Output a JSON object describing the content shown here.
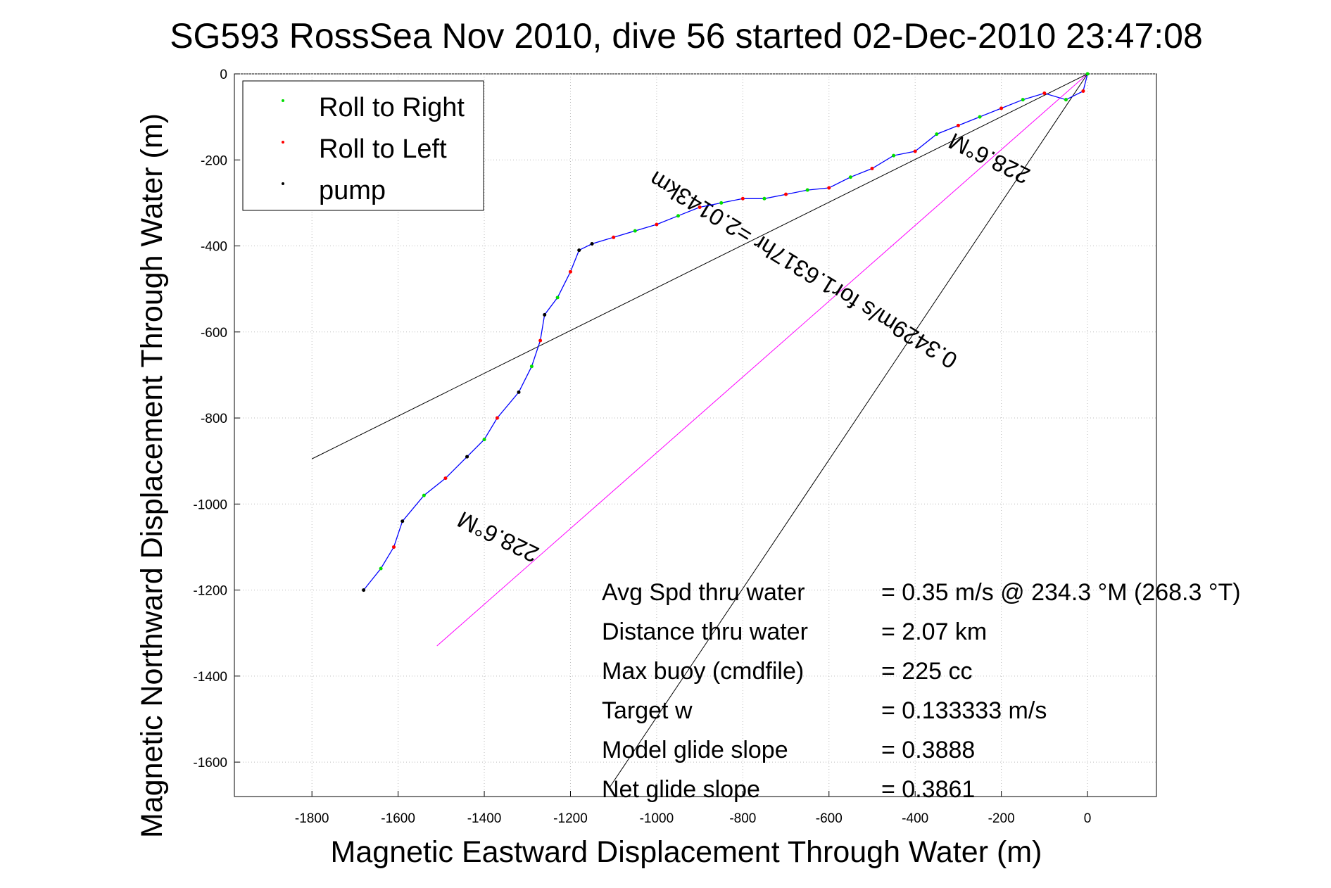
{
  "chart_data": {
    "type": "scatter",
    "title": "SG593 RossSea Nov 2010, dive 56 started 02-Dec-2010 23:47:08",
    "xlabel": "Magnetic Eastward Displacement Through Water (m)",
    "ylabel": "Magnetic Northward Displacement Through Water (m)",
    "xlim": [
      -1980,
      160
    ],
    "ylim": [
      -1680,
      0
    ],
    "xticks": [
      -1800,
      -1600,
      -1400,
      -1200,
      -1000,
      -800,
      -600,
      -400,
      -200,
      0
    ],
    "yticks": [
      0,
      -200,
      -400,
      -600,
      -800,
      -1000,
      -1200,
      -1400,
      -1600
    ],
    "grid": true,
    "legend": {
      "placement": "top-left",
      "entries": [
        {
          "label": "Roll to Right",
          "color": "#00dd00"
        },
        {
          "label": "Roll to Left",
          "color": "#ff0000"
        },
        {
          "label": "pump",
          "color": "#000000"
        }
      ]
    },
    "track_color": "#0000ff",
    "track": [
      [
        0,
        0
      ],
      [
        -10,
        -40
      ],
      [
        -50,
        -60
      ],
      [
        -100,
        -45
      ],
      [
        -150,
        -60
      ],
      [
        -200,
        -80
      ],
      [
        -250,
        -100
      ],
      [
        -300,
        -120
      ],
      [
        -350,
        -140
      ],
      [
        -400,
        -180
      ],
      [
        -450,
        -190
      ],
      [
        -500,
        -220
      ],
      [
        -550,
        -240
      ],
      [
        -600,
        -265
      ],
      [
        -650,
        -270
      ],
      [
        -700,
        -280
      ],
      [
        -750,
        -290
      ],
      [
        -800,
        -290
      ],
      [
        -850,
        -300
      ],
      [
        -900,
        -310
      ],
      [
        -950,
        -330
      ],
      [
        -1000,
        -350
      ],
      [
        -1050,
        -365
      ],
      [
        -1100,
        -380
      ],
      [
        -1150,
        -395
      ],
      [
        -1180,
        -410
      ],
      [
        -1200,
        -460
      ],
      [
        -1230,
        -520
      ],
      [
        -1260,
        -560
      ],
      [
        -1270,
        -620
      ],
      [
        -1290,
        -680
      ],
      [
        -1320,
        -740
      ],
      [
        -1370,
        -800
      ],
      [
        -1400,
        -850
      ],
      [
        -1440,
        -890
      ],
      [
        -1490,
        -940
      ],
      [
        -1540,
        -980
      ],
      [
        -1590,
        -1040
      ],
      [
        -1610,
        -1100
      ],
      [
        -1640,
        -1150
      ],
      [
        -1680,
        -1200
      ]
    ],
    "reference_lines": [
      {
        "label": "228.6°M",
        "color": "#ff00ff",
        "from": [
          0,
          0
        ],
        "to": [
          -1510,
          -1330
        ]
      },
      {
        "label": "",
        "color": "#000000",
        "from": [
          0,
          0
        ],
        "to": [
          -1800,
          -895
        ]
      },
      {
        "label": "",
        "color": "#000000",
        "from": [
          0,
          0
        ],
        "to": [
          -1110,
          -1660
        ]
      }
    ],
    "line_labels": [
      {
        "text": "228.6°M",
        "rotation": 206
      },
      {
        "text": "0.3429m/s for1.6317hr =2.0143km",
        "rotation": 211.5
      },
      {
        "text": "228.6°M",
        "rotation": 206
      }
    ],
    "annotations": [
      {
        "label": "Avg Spd thru water",
        "value": "=  0.35 m/s @ 234.3 °M (268.3 °T)"
      },
      {
        "label": "Distance thru water",
        "value": "=  2.07 km"
      },
      {
        "label": "Max buoy (cmdfile)",
        "value": "= 225 cc"
      },
      {
        "label": "Target w",
        "value": "= 0.133333 m/s"
      },
      {
        "label": "Model glide slope",
        "value": "= 0.3888"
      },
      {
        "label": "Net glide slope",
        "value": "= 0.3861"
      }
    ]
  }
}
